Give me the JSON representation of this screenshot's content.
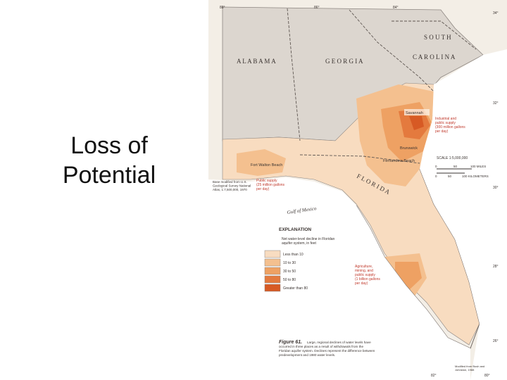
{
  "slide": {
    "title_line1": "Loss of",
    "title_line2": "Potential"
  },
  "map": {
    "states": {
      "alabama": "A L A B A M A",
      "georgia": "G E O R G I A",
      "south": "S O U T H",
      "carolina": "C A R O L I N A",
      "florida": "F L O R I D A"
    },
    "water": {
      "gulf": "Gulf of Mexico"
    },
    "places": {
      "savannah": "Savannah",
      "brunswick": "Brunswick",
      "fernandina": "Fernandina Beach",
      "fortwalton": "Fort Walton Beach"
    },
    "callouts": {
      "industrial": [
        "Industrial and",
        "public supply",
        "(300 million gallons",
        "per day)"
      ],
      "public": [
        "Public supply",
        "(25 million gallons",
        "per day)"
      ],
      "agri": [
        "Agriculture,",
        "mining, and",
        "public supply",
        "(1 billion gallons",
        "per day)"
      ]
    },
    "base_note": [
      "Base modified from U.S.",
      "Geological Survey National",
      "Atlas, 1:7,500,000, 1970"
    ],
    "scale": {
      "title": "SCALE 1:5,000,000",
      "miles_0": "0",
      "miles_50": "50",
      "miles_100": "100 MILES",
      "km_0": "0",
      "km_50": "50",
      "km_100": "100 KILOMETERS"
    },
    "explanation": {
      "heading": "EXPLANATION",
      "subheading": [
        "Net water-level decline in Floridan",
        "aquifer system, in feet"
      ],
      "items": [
        {
          "label": "Less than 10",
          "color": "#f8dcc0"
        },
        {
          "label": "10 to 30",
          "color": "#f4c08f"
        },
        {
          "label": "30 to 50",
          "color": "#eea163"
        },
        {
          "label": "50 to 80",
          "color": "#e47a3e"
        },
        {
          "label": "Greater than 80",
          "color": "#d75a24"
        }
      ]
    },
    "figure": {
      "title": "Figure 61.",
      "caption": [
        "Large, regional declines of water levels have",
        "occurred in three places as a result of withdrawals from the",
        "Floridan aquifer system. Declines represent the difference between",
        "predevelopment and 1980 water levels."
      ]
    },
    "credit": [
      "Modified from Bush and",
      "Johnston, 1988"
    ],
    "coords": {
      "lon88": "88°",
      "lon86": "86°",
      "lon84": "84°",
      "lon82": "82°",
      "lon80": "80°",
      "lat34": "34°",
      "lat32": "32°",
      "lat30": "30°",
      "lat28": "28°",
      "lat26": "26°"
    }
  }
}
